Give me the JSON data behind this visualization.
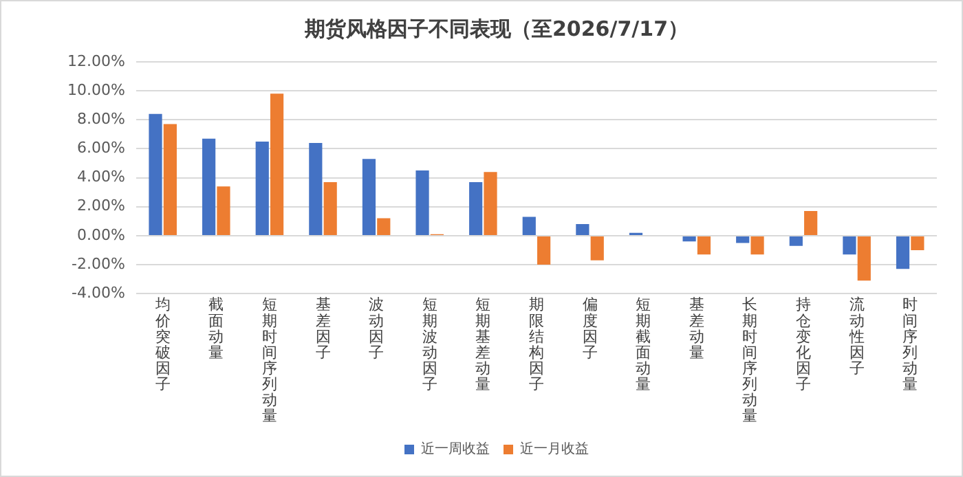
{
  "chart_data": {
    "type": "bar",
    "title": "期货风格因子不同表现（至2026/7/17）",
    "categories": [
      "均价突破因子",
      "截面动量",
      "短期时间序列动量",
      "基差因子",
      "波动因子",
      "短期波动因子",
      "短期基差动量",
      "期限结构因子",
      "偏度因子",
      "短期截面动量",
      "基差动量",
      "长期时间序列动量",
      "持仓变化因子",
      "流动性因子",
      "时间序列动量"
    ],
    "series": [
      {
        "name": "近一周收益",
        "color": "#4472c4",
        "values": [
          8.4,
          6.7,
          6.5,
          6.4,
          5.3,
          4.5,
          3.7,
          1.3,
          0.8,
          0.2,
          -0.4,
          -0.5,
          -0.7,
          -1.3,
          -2.3
        ]
      },
      {
        "name": "近一月收益",
        "color": "#ed7d31",
        "values": [
          7.7,
          3.4,
          9.8,
          3.7,
          1.2,
          0.1,
          4.4,
          -2.0,
          -1.7,
          0.0,
          -1.3,
          -1.3,
          1.7,
          -3.1,
          -1.0
        ]
      }
    ],
    "ylim": [
      -4,
      12
    ],
    "yticks": [
      {
        "value": -4,
        "label": "-4.00%"
      },
      {
        "value": -2,
        "label": "-2.00%"
      },
      {
        "value": 0,
        "label": "0.00%"
      },
      {
        "value": 2,
        "label": "2.00%"
      },
      {
        "value": 4,
        "label": "4.00%"
      },
      {
        "value": 6,
        "label": "6.00%"
      },
      {
        "value": 8,
        "label": "8.00%"
      },
      {
        "value": 10,
        "label": "10.00%"
      },
      {
        "value": 12,
        "label": "12.00%"
      }
    ],
    "grid": "y",
    "legend": "bottom"
  }
}
